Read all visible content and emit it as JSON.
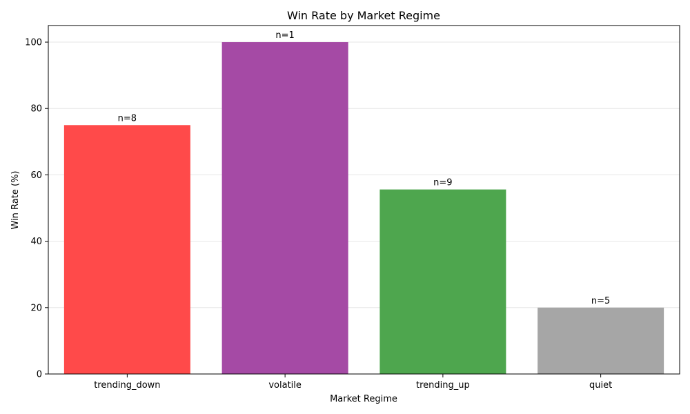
{
  "chart_data": {
    "type": "bar",
    "title": "Win Rate by Market Regime",
    "xlabel": "Market Regime",
    "ylabel": "Win Rate (%)",
    "categories": [
      "trending_down",
      "volatile",
      "trending_up",
      "quiet"
    ],
    "values": [
      75,
      100,
      55.6,
      20
    ],
    "bar_labels": [
      "n=8",
      "n=1",
      "n=9",
      "n=5"
    ],
    "colors": [
      "#ff4a4a",
      "#a54aa5",
      "#4ea64e",
      "#a6a6a6"
    ],
    "ylim": [
      0,
      105
    ],
    "yticks": [
      0,
      20,
      40,
      60,
      80,
      100
    ],
    "grid": "y"
  }
}
